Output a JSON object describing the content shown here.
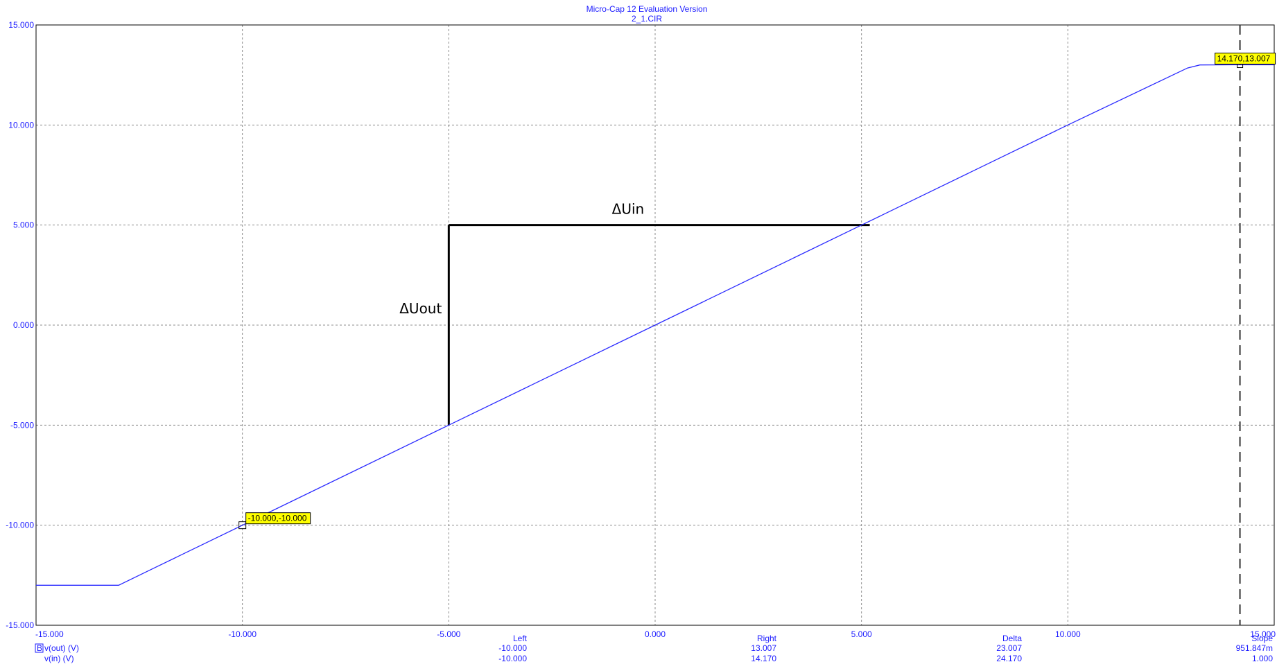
{
  "window": {
    "title": "Micro-Cap 12 Evaluation Version",
    "subtitle": "2_1.CIR"
  },
  "colors": {
    "curve": "#2b2bff",
    "axis_text": "#1a1aff",
    "grid": "#8c8c8c",
    "cursor_label_bg": "#ffff00",
    "annotation": "#000000"
  },
  "chart_data": {
    "type": "line",
    "title": "Micro-Cap 12 Evaluation Version",
    "subtitle": "2_1.CIR",
    "xlim": [
      -15,
      15
    ],
    "ylim": [
      -15,
      15
    ],
    "x_ticks": [
      "-15.000",
      "-10.000",
      "-5.000",
      "0.000",
      "5.000",
      "10.000",
      "15.000"
    ],
    "y_ticks": [
      "15.000",
      "10.000",
      "5.000",
      "0.000",
      "-5.000",
      "-10.000",
      "-15.000"
    ],
    "grid": true,
    "series": [
      {
        "name": "v(out) (V)",
        "x": [
          -15.0,
          -13.0,
          -12.2,
          -10.0,
          -5.0,
          0.0,
          5.0,
          10.0,
          12.9,
          13.2,
          14.17,
          15.0
        ],
        "y": [
          -13.0,
          -13.0,
          -12.2,
          -10.0,
          -5.0,
          0.0,
          5.0,
          10.0,
          12.85,
          13.0,
          13.007,
          13.007
        ]
      }
    ],
    "legend": {
      "placement": "bottom-left",
      "y_expr": "v(out) (V)",
      "x_expr": "v(in) (V)",
      "badge": "B"
    },
    "cursors": [
      {
        "x": -10.0,
        "y": -10.0,
        "label": "-10.000,-10.000"
      },
      {
        "x": 14.17,
        "y": 13.007,
        "label": "14.170,13.007"
      }
    ],
    "annotations": {
      "delta_in": {
        "label": "ΔUin",
        "x_from": -5.0,
        "x_to": 5.2,
        "y": 5.0
      },
      "delta_out": {
        "label": "ΔUout",
        "x": -5.0,
        "y_from": -5.0,
        "y_to": 5.0
      }
    },
    "cursor_table": {
      "headers": [
        "Left",
        "Right",
        "Delta",
        "Slope"
      ],
      "rows": [
        [
          "-10.000",
          "13.007",
          "23.007",
          "951.847m"
        ],
        [
          "-10.000",
          "14.170",
          "24.170",
          "1.000"
        ]
      ]
    }
  }
}
